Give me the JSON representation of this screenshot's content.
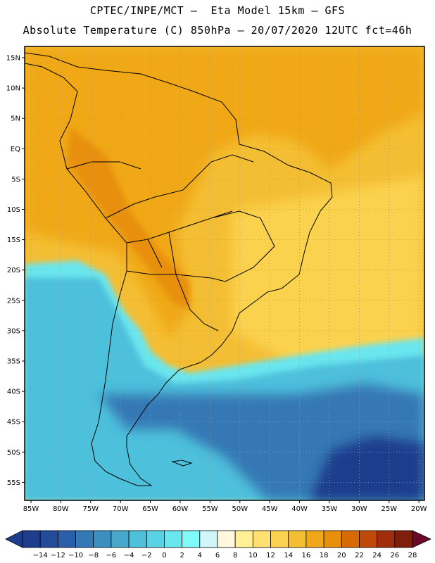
{
  "header": {
    "line1": "CPTEC/INPE/MCT –  Eta Model 15km – GFS",
    "line2": "Absolute Temperature (C) 850hPa – 20/07/2020 12UTC fct=46h"
  },
  "axes": {
    "lat_labels": [
      "15N",
      "10N",
      "5N",
      "EQ",
      "5S",
      "10S",
      "15S",
      "20S",
      "25S",
      "30S",
      "35S",
      "40S",
      "45S",
      "50S",
      "55S"
    ],
    "lon_labels": [
      "85W",
      "80W",
      "75W",
      "70W",
      "65W",
      "60W",
      "55W",
      "50W",
      "45W",
      "40W",
      "35W",
      "30W",
      "25W",
      "20W"
    ]
  },
  "colorbar": {
    "labels": [
      "-14",
      "-12",
      "-10",
      "-8",
      "-6",
      "-4",
      "-2",
      "0",
      "2",
      "4",
      "6",
      "8",
      "10",
      "12",
      "14",
      "16",
      "18",
      "20",
      "22",
      "24",
      "26",
      "28"
    ],
    "colors": [
      "#1e3d8c",
      "#244a9a",
      "#2a5ea8",
      "#3478b4",
      "#3c90c0",
      "#48a8cc",
      "#4ec0dc",
      "#5ad2e6",
      "#6ae6ee",
      "#80faf8",
      "#d0f6fa",
      "#fff8e0",
      "#fff096",
      "#ffe070",
      "#fbd24e",
      "#f4be34",
      "#f0a818",
      "#e8900c",
      "#d86a06",
      "#c04808",
      "#a02e0a",
      "#801e0c"
    ]
  },
  "map_colors": {
    "cold_deep": "#1e3d8c",
    "cold": "#3478b4",
    "cool": "#4ec0dc",
    "cyan": "#6ae6ee",
    "warm_light": "#fbd24e",
    "warm": "#f4be34",
    "hot": "#f0a818",
    "hotter": "#e8900c"
  }
}
